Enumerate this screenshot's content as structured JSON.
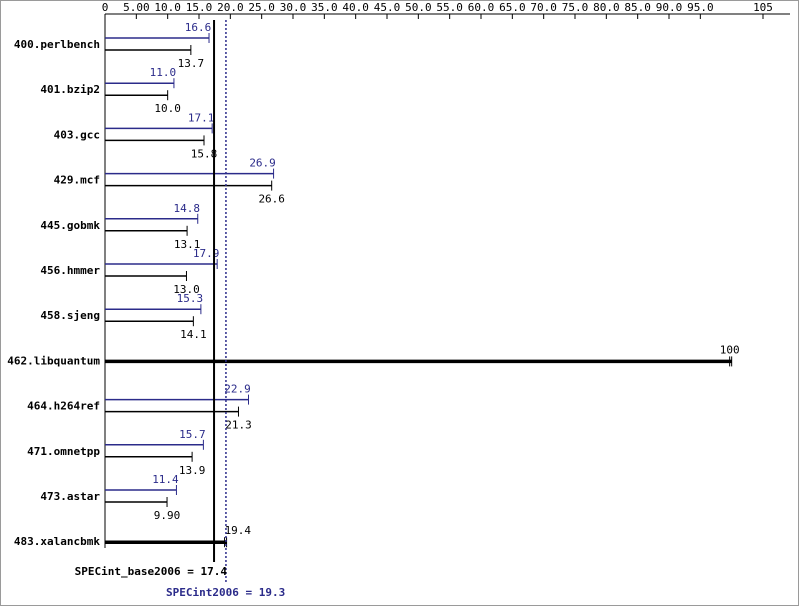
{
  "chart_data": {
    "type": "bar",
    "orientation": "horizontal",
    "x_ticks": [
      {
        "value": 0,
        "label": "0"
      },
      {
        "value": 5,
        "label": "5.00"
      },
      {
        "value": 10,
        "label": "10.0"
      },
      {
        "value": 15,
        "label": "15.0"
      },
      {
        "value": 20,
        "label": "20.0"
      },
      {
        "value": 25,
        "label": "25.0"
      },
      {
        "value": 30,
        "label": "30.0"
      },
      {
        "value": 35,
        "label": "35.0"
      },
      {
        "value": 40,
        "label": "40.0"
      },
      {
        "value": 45,
        "label": "45.0"
      },
      {
        "value": 50,
        "label": "50.0"
      },
      {
        "value": 55,
        "label": "55.0"
      },
      {
        "value": 60,
        "label": "60.0"
      },
      {
        "value": 65,
        "label": "65.0"
      },
      {
        "value": 70,
        "label": "70.0"
      },
      {
        "value": 75,
        "label": "75.0"
      },
      {
        "value": 80,
        "label": "80.0"
      },
      {
        "value": 85,
        "label": "85.0"
      },
      {
        "value": 90,
        "label": "90.0"
      },
      {
        "value": 95,
        "label": "95.0"
      },
      {
        "value": 105,
        "label": "105"
      }
    ],
    "xlim": [
      0,
      105
    ],
    "benchmarks": [
      {
        "name": "400.perlbench",
        "peak": 16.6,
        "peak_label": "16.6",
        "base": 13.7,
        "base_label": "13.7"
      },
      {
        "name": "401.bzip2",
        "peak": 11.0,
        "peak_label": "11.0",
        "base": 10.0,
        "base_label": "10.0"
      },
      {
        "name": "403.gcc",
        "peak": 17.1,
        "peak_label": "17.1",
        "base": 15.8,
        "base_label": "15.8"
      },
      {
        "name": "429.mcf",
        "peak": 26.9,
        "peak_label": "26.9",
        "base": 26.6,
        "base_label": "26.6"
      },
      {
        "name": "445.gobmk",
        "peak": 14.8,
        "peak_label": "14.8",
        "base": 13.1,
        "base_label": "13.1"
      },
      {
        "name": "456.hmmer",
        "peak": 17.9,
        "peak_label": "17.9",
        "base": 13.0,
        "base_label": "13.0"
      },
      {
        "name": "458.sjeng",
        "peak": 15.3,
        "peak_label": "15.3",
        "base": 14.1,
        "base_label": "14.1"
      },
      {
        "name": "462.libquantum",
        "combined": 100,
        "combined_label": "100"
      },
      {
        "name": "464.h264ref",
        "peak": 22.9,
        "peak_label": "22.9",
        "base": 21.3,
        "base_label": "21.3"
      },
      {
        "name": "471.omnetpp",
        "peak": 15.7,
        "peak_label": "15.7",
        "base": 13.9,
        "base_label": "13.9"
      },
      {
        "name": "473.astar",
        "peak": 11.4,
        "peak_label": "11.4",
        "base": 9.9,
        "base_label": "9.90"
      },
      {
        "name": "483.xalancbmk",
        "combined": 19.4,
        "combined_label": "19.4"
      }
    ],
    "summary": {
      "base_value": 17.4,
      "base_text": "SPECint_base2006 = 17.4",
      "peak_value": 19.3,
      "peak_text": "SPECint2006 = 19.3"
    },
    "colors": {
      "peak": "#2b2b8a",
      "base": "#000000"
    },
    "grid": false
  }
}
